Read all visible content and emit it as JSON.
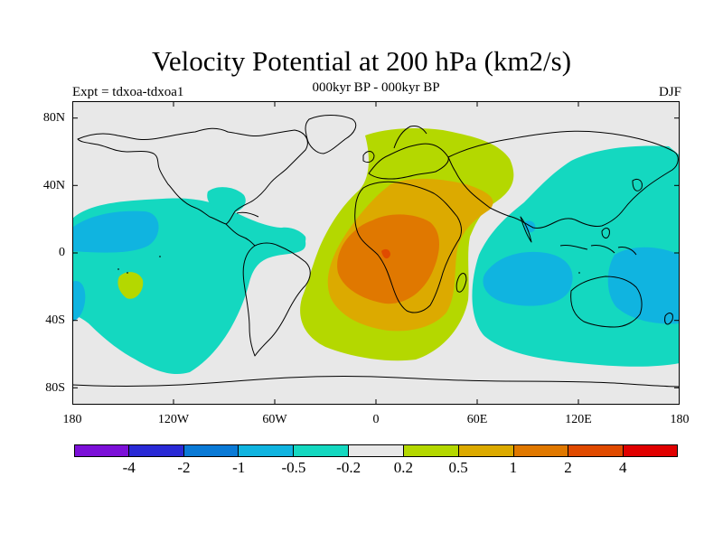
{
  "title": "Velocity Potential at 200 hPa (km2/s)",
  "subtitle": "000kyr BP - 000kyr BP",
  "left_label": "Expt = tdxoa-tdxoa1",
  "right_label": "DJF",
  "lat_labels": [
    "80N",
    "40N",
    "0",
    "40S",
    "80S"
  ],
  "lon_labels": [
    "180",
    "120W",
    "60W",
    "0",
    "60E",
    "120E",
    "180"
  ],
  "colorbar": {
    "colors": [
      "#7c10d8",
      "#2a2ad6",
      "#0a7ad6",
      "#10b4e0",
      "#14d8c0",
      "#e8e8e8",
      "#b4d800",
      "#dcaa00",
      "#e07800",
      "#e04a00",
      "#e00000"
    ],
    "labels": [
      "-4",
      "-2",
      "-1",
      "-0.5",
      "-0.2",
      "0.2",
      "0.5",
      "1",
      "2",
      "4"
    ]
  },
  "map": {
    "background_color": "#e8e8e8",
    "coastline_color": "#000000",
    "lon_range": [
      -180,
      180
    ],
    "lat_range": [
      -90,
      90
    ]
  }
}
